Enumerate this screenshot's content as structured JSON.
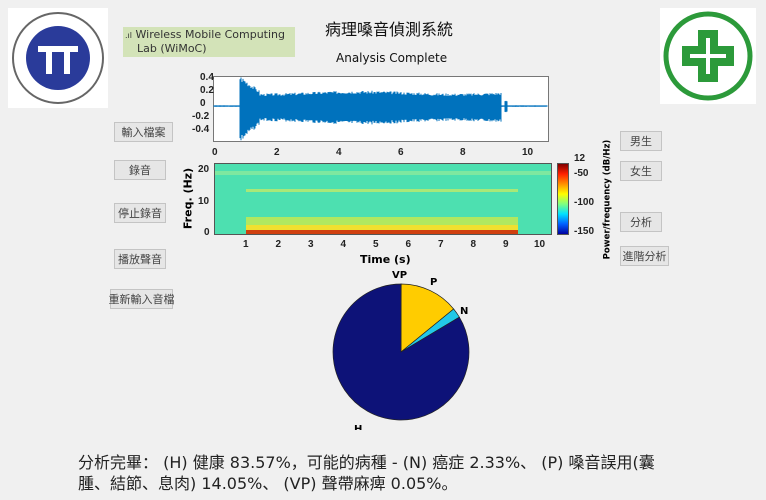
{
  "header": {
    "title": "病理嗓音偵測系統",
    "lab_badge_line1": "Wireless Mobile Computing",
    "lab_badge_line2": "Lab (WiMoC)",
    "lab_icon": "signal-bars-icon",
    "status": "Analysis Complete"
  },
  "logos": {
    "left": "YUAN-ZE UNIVERSITY",
    "right": "green-cross-logo"
  },
  "left_buttons": [
    "輸入檔案",
    "錄音",
    "停止錄音",
    "播放聲音",
    "重新輸入音檔"
  ],
  "right_buttons": [
    "男生",
    "女生",
    "分析",
    "進階分析"
  ],
  "waveform": {
    "yticks": [
      "0.4",
      "0.2",
      "0",
      "-0.2",
      "-0.4"
    ],
    "xticks": [
      "0",
      "2",
      "4",
      "6",
      "8",
      "10"
    ],
    "color": "#0072bd"
  },
  "spectrogram": {
    "ylabel": "Freq. (Hz)",
    "xlabel": "Time (s)",
    "yticks": [
      "20",
      "10",
      "0"
    ],
    "xticks": [
      "1",
      "2",
      "3",
      "4",
      "5",
      "6",
      "7",
      "8",
      "9",
      "10"
    ],
    "colorbar_label": "Power/frequency (dB/Hz)",
    "colorbar_ticks": [
      "12",
      "-50",
      "-100",
      "-150"
    ]
  },
  "chart_data": {
    "type": "pie",
    "labels": [
      "VP",
      "P",
      "N",
      "H"
    ],
    "values": [
      0.05,
      14.05,
      2.33,
      83.57
    ],
    "colors": [
      "#7e2f8e",
      "#ffcc00",
      "#22c8e8",
      "#0d1278"
    ]
  },
  "result_text_line1": "分析完畢： (H) 健康 83.57%，可能的病種 - (N) 癌症 2.33%、 (P) 嗓音誤用(囊",
  "result_text_line2": "腫、結節、息肉) 14.05%、 (VP) 聲帶麻痺 0.05%。"
}
